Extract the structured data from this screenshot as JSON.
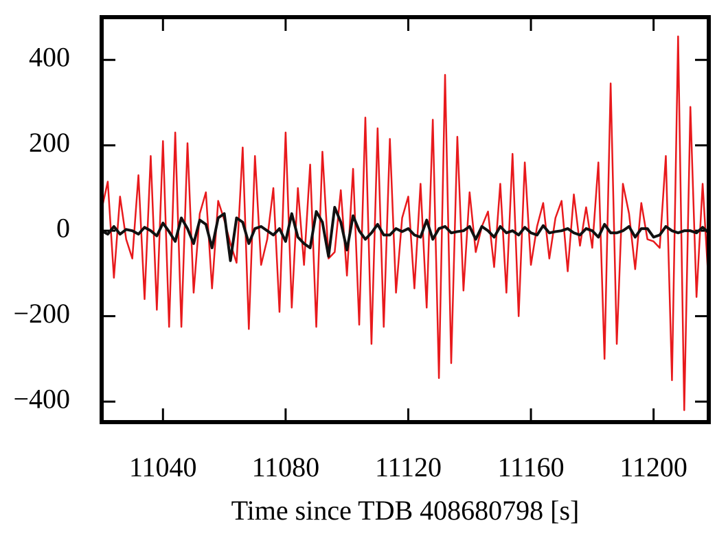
{
  "chart_data": {
    "type": "line",
    "xlabel": "Time since TDB 408680798 [s]",
    "x": [
      11020,
      11022,
      11024,
      11026,
      11028,
      11030,
      11032,
      11034,
      11036,
      11038,
      11040,
      11042,
      11044,
      11046,
      11048,
      11050,
      11052,
      11054,
      11056,
      11058,
      11060,
      11062,
      11064,
      11066,
      11068,
      11070,
      11072,
      11074,
      11076,
      11078,
      11080,
      11082,
      11084,
      11086,
      11088,
      11090,
      11092,
      11094,
      11096,
      11098,
      11100,
      11102,
      11104,
      11106,
      11108,
      11110,
      11112,
      11114,
      11116,
      11118,
      11120,
      11122,
      11124,
      11126,
      11128,
      11130,
      11132,
      11134,
      11136,
      11138,
      11140,
      11142,
      11144,
      11146,
      11148,
      11150,
      11152,
      11154,
      11156,
      11158,
      11160,
      11162,
      11164,
      11166,
      11168,
      11170,
      11172,
      11174,
      11176,
      11178,
      11180,
      11182,
      11184,
      11186,
      11188,
      11190,
      11192,
      11194,
      11196,
      11198,
      11200,
      11202,
      11204,
      11206,
      11208,
      11210,
      11212,
      11214,
      11216,
      11218
    ],
    "series": [
      {
        "color": "#e8191c",
        "values": [
          50,
          115,
          -110,
          80,
          -20,
          -65,
          130,
          -160,
          175,
          -185,
          210,
          -225,
          230,
          -225,
          205,
          -145,
          40,
          90,
          -135,
          70,
          25,
          -30,
          -75,
          195,
          -230,
          175,
          -80,
          -20,
          100,
          -190,
          230,
          -180,
          100,
          -80,
          155,
          -225,
          185,
          -65,
          -50,
          95,
          -105,
          145,
          -220,
          265,
          -265,
          240,
          -225,
          215,
          -145,
          30,
          80,
          -135,
          110,
          -180,
          260,
          -345,
          365,
          -310,
          220,
          -140,
          90,
          -50,
          10,
          45,
          -85,
          110,
          -145,
          180,
          -200,
          160,
          -80,
          10,
          65,
          -65,
          30,
          70,
          -95,
          85,
          -35,
          55,
          -40,
          160,
          -300,
          345,
          -265,
          110,
          40,
          -90,
          65,
          -20,
          -25,
          -40,
          175,
          -350,
          455,
          -420,
          290,
          -155,
          110,
          -130
        ]
      },
      {
        "color": "#111111",
        "values": [
          0,
          -8,
          10,
          -8,
          3,
          0,
          -8,
          8,
          0,
          -12,
          18,
          -2,
          -25,
          30,
          5,
          -30,
          25,
          15,
          -40,
          30,
          40,
          -70,
          30,
          20,
          -30,
          5,
          10,
          0,
          -10,
          5,
          -25,
          40,
          -15,
          -30,
          -40,
          45,
          20,
          -60,
          55,
          20,
          -45,
          35,
          0,
          -20,
          -5,
          15,
          -10,
          -10,
          5,
          -2,
          5,
          -10,
          -15,
          25,
          -20,
          5,
          10,
          -5,
          -2,
          0,
          10,
          -20,
          10,
          0,
          -15,
          10,
          -5,
          0,
          -10,
          8,
          -5,
          -10,
          12,
          -5,
          -2,
          0,
          5,
          -5,
          -10,
          5,
          0,
          -15,
          15,
          -5,
          -5,
          0,
          10,
          -15,
          5,
          5,
          -15,
          -10,
          10,
          0,
          -5,
          0,
          0,
          -5,
          8,
          -5
        ]
      }
    ],
    "xlim": [
      11020,
      11218
    ],
    "xticks": [
      11040,
      11080,
      11120,
      11160,
      11200
    ],
    "ylim": [
      -448,
      500
    ],
    "yticks": [
      {
        "value": -400,
        "label": "−400"
      },
      {
        "value": -200,
        "label": "−200"
      },
      0,
      200,
      400
    ]
  }
}
